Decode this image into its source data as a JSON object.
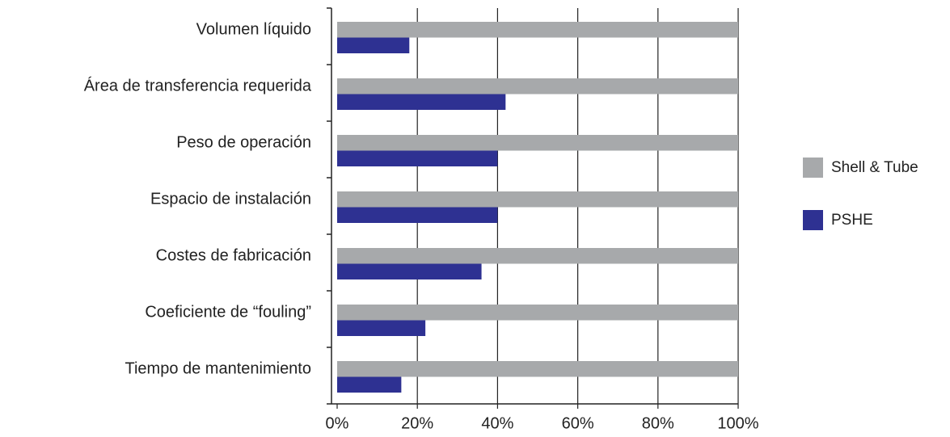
{
  "chart_data": {
    "type": "barh",
    "categories": [
      "Volumen líquido",
      "Área de transferencia requerida",
      "Peso de operación",
      "Espacio de instalación",
      "Costes de fabricación",
      "Coeficiente de “fouling”",
      "Tiempo de mantenimiento"
    ],
    "series": [
      {
        "name": "Shell & Tube",
        "color": "#a7a9ab",
        "values": [
          100,
          100,
          100,
          100,
          100,
          100,
          100
        ]
      },
      {
        "name": "PSHE",
        "color": "#2e3192",
        "values": [
          18,
          42,
          40,
          40,
          36,
          22,
          16
        ]
      }
    ],
    "xlim": [
      0,
      100
    ],
    "xticks": [
      {
        "value": 0,
        "label": "0%"
      },
      {
        "value": 20,
        "label": "20%"
      },
      {
        "value": 40,
        "label": "40%"
      },
      {
        "value": 60,
        "label": "60%"
      },
      {
        "value": 80,
        "label": "80%"
      },
      {
        "value": 100,
        "label": "100%"
      }
    ],
    "grid": true,
    "legend": "right"
  }
}
